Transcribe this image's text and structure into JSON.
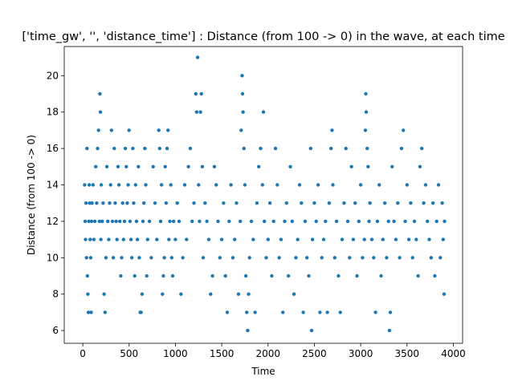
{
  "chart_data": {
    "type": "scatter",
    "title": "['time_gw', '', 'distance_time'] : Distance (from 100 -> 0) in the wave, at each time",
    "xlabel": "Time",
    "ylabel": "Distance (from 100 -> 0)",
    "xlim": [
      -200,
      4100
    ],
    "ylim": [
      5.3,
      21.6
    ],
    "xticks": [
      0,
      500,
      1000,
      1500,
      2000,
      2500,
      3000,
      3500,
      4000
    ],
    "yticks": [
      6,
      8,
      10,
      12,
      14,
      16,
      18,
      20
    ],
    "grid": false,
    "legend": "none",
    "marker_color": "#1f77b4",
    "series": [
      {
        "points": [
          [
            20,
            14
          ],
          [
            25,
            12
          ],
          [
            30,
            11
          ],
          [
            35,
            13
          ],
          [
            40,
            10
          ],
          [
            45,
            16
          ],
          [
            50,
            9
          ],
          [
            55,
            8
          ],
          [
            60,
            7
          ],
          [
            65,
            12
          ],
          [
            70,
            14
          ],
          [
            75,
            13
          ],
          [
            80,
            11
          ],
          [
            85,
            10
          ],
          [
            90,
            7
          ],
          [
            95,
            12
          ],
          [
            100,
            13
          ],
          [
            110,
            14
          ],
          [
            120,
            11
          ],
          [
            130,
            12
          ],
          [
            140,
            15
          ],
          [
            150,
            13
          ],
          [
            160,
            16
          ],
          [
            170,
            17
          ],
          [
            180,
            12
          ],
          [
            185,
            19
          ],
          [
            190,
            18
          ],
          [
            195,
            11
          ],
          [
            200,
            14
          ],
          [
            210,
            12
          ],
          [
            220,
            13
          ],
          [
            230,
            8
          ],
          [
            240,
            7
          ],
          [
            250,
            10
          ],
          [
            260,
            15
          ],
          [
            270,
            12
          ],
          [
            280,
            11
          ],
          [
            290,
            13
          ],
          [
            300,
            14
          ],
          [
            310,
            17
          ],
          [
            320,
            12
          ],
          [
            330,
            10
          ],
          [
            340,
            16
          ],
          [
            350,
            13
          ],
          [
            360,
            12
          ],
          [
            370,
            11
          ],
          [
            380,
            15
          ],
          [
            390,
            14
          ],
          [
            400,
            12
          ],
          [
            410,
            9
          ],
          [
            420,
            10
          ],
          [
            430,
            13
          ],
          [
            440,
            11
          ],
          [
            450,
            12
          ],
          [
            460,
            16
          ],
          [
            470,
            15
          ],
          [
            480,
            13
          ],
          [
            490,
            14
          ],
          [
            500,
            17
          ],
          [
            510,
            12
          ],
          [
            520,
            11
          ],
          [
            530,
            10
          ],
          [
            540,
            16
          ],
          [
            550,
            13
          ],
          [
            560,
            9
          ],
          [
            570,
            14
          ],
          [
            580,
            12
          ],
          [
            590,
            11
          ],
          [
            600,
            15
          ],
          [
            610,
            10
          ],
          [
            620,
            7
          ],
          [
            630,
            7
          ],
          [
            640,
            8
          ],
          [
            650,
            12
          ],
          [
            660,
            13
          ],
          [
            670,
            16
          ],
          [
            680,
            14
          ],
          [
            690,
            9
          ],
          [
            700,
            11
          ],
          [
            720,
            12
          ],
          [
            740,
            10
          ],
          [
            760,
            15
          ],
          [
            780,
            13
          ],
          [
            800,
            11
          ],
          [
            820,
            17
          ],
          [
            830,
            16
          ],
          [
            840,
            12
          ],
          [
            850,
            14
          ],
          [
            860,
            8
          ],
          [
            870,
            9
          ],
          [
            880,
            10
          ],
          [
            890,
            15
          ],
          [
            900,
            13
          ],
          [
            910,
            16
          ],
          [
            920,
            17
          ],
          [
            930,
            11
          ],
          [
            940,
            12
          ],
          [
            950,
            14
          ],
          [
            960,
            10
          ],
          [
            970,
            9
          ],
          [
            980,
            12
          ],
          [
            1000,
            11
          ],
          [
            1020,
            13
          ],
          [
            1040,
            12
          ],
          [
            1060,
            8
          ],
          [
            1080,
            10
          ],
          [
            1100,
            14
          ],
          [
            1120,
            11
          ],
          [
            1140,
            15
          ],
          [
            1160,
            16
          ],
          [
            1180,
            12
          ],
          [
            1200,
            13
          ],
          [
            1220,
            19
          ],
          [
            1230,
            18
          ],
          [
            1240,
            21
          ],
          [
            1250,
            14
          ],
          [
            1260,
            12
          ],
          [
            1270,
            18
          ],
          [
            1280,
            19
          ],
          [
            1290,
            15
          ],
          [
            1300,
            10
          ],
          [
            1320,
            13
          ],
          [
            1340,
            12
          ],
          [
            1360,
            11
          ],
          [
            1380,
            8
          ],
          [
            1400,
            9
          ],
          [
            1420,
            15
          ],
          [
            1440,
            14
          ],
          [
            1460,
            12
          ],
          [
            1480,
            10
          ],
          [
            1500,
            11
          ],
          [
            1520,
            13
          ],
          [
            1540,
            9
          ],
          [
            1560,
            7
          ],
          [
            1580,
            12
          ],
          [
            1600,
            14
          ],
          [
            1620,
            10
          ],
          [
            1640,
            11
          ],
          [
            1660,
            13
          ],
          [
            1680,
            8
          ],
          [
            1700,
            12
          ],
          [
            1710,
            17
          ],
          [
            1720,
            20
          ],
          [
            1725,
            19
          ],
          [
            1730,
            18
          ],
          [
            1740,
            16
          ],
          [
            1750,
            14
          ],
          [
            1760,
            9
          ],
          [
            1770,
            7
          ],
          [
            1780,
            6
          ],
          [
            1790,
            8
          ],
          [
            1800,
            10
          ],
          [
            1820,
            12
          ],
          [
            1840,
            11
          ],
          [
            1860,
            7
          ],
          [
            1880,
            13
          ],
          [
            1900,
            15
          ],
          [
            1920,
            16
          ],
          [
            1940,
            14
          ],
          [
            1950,
            18
          ],
          [
            1960,
            12
          ],
          [
            1980,
            10
          ],
          [
            2000,
            11
          ],
          [
            2020,
            13
          ],
          [
            2040,
            9
          ],
          [
            2060,
            12
          ],
          [
            2080,
            16
          ],
          [
            2100,
            14
          ],
          [
            2120,
            10
          ],
          [
            2140,
            11
          ],
          [
            2160,
            7
          ],
          [
            2180,
            12
          ],
          [
            2200,
            13
          ],
          [
            2220,
            9
          ],
          [
            2240,
            15
          ],
          [
            2260,
            12
          ],
          [
            2280,
            8
          ],
          [
            2300,
            10
          ],
          [
            2320,
            11
          ],
          [
            2340,
            14
          ],
          [
            2360,
            13
          ],
          [
            2380,
            7
          ],
          [
            2400,
            12
          ],
          [
            2420,
            10
          ],
          [
            2440,
            9
          ],
          [
            2460,
            16
          ],
          [
            2470,
            6
          ],
          [
            2480,
            11
          ],
          [
            2500,
            13
          ],
          [
            2520,
            12
          ],
          [
            2540,
            14
          ],
          [
            2560,
            7
          ],
          [
            2580,
            10
          ],
          [
            2600,
            11
          ],
          [
            2620,
            12
          ],
          [
            2640,
            7
          ],
          [
            2660,
            13
          ],
          [
            2680,
            16
          ],
          [
            2690,
            17
          ],
          [
            2700,
            14
          ],
          [
            2720,
            10
          ],
          [
            2740,
            12
          ],
          [
            2760,
            9
          ],
          [
            2780,
            7
          ],
          [
            2800,
            11
          ],
          [
            2820,
            13
          ],
          [
            2840,
            16
          ],
          [
            2860,
            12
          ],
          [
            2880,
            10
          ],
          [
            2900,
            15
          ],
          [
            2920,
            11
          ],
          [
            2940,
            13
          ],
          [
            2960,
            9
          ],
          [
            2980,
            12
          ],
          [
            3000,
            14
          ],
          [
            3020,
            10
          ],
          [
            3040,
            11
          ],
          [
            3050,
            17
          ],
          [
            3055,
            19
          ],
          [
            3060,
            18
          ],
          [
            3070,
            16
          ],
          [
            3080,
            15
          ],
          [
            3090,
            12
          ],
          [
            3100,
            13
          ],
          [
            3120,
            11
          ],
          [
            3140,
            10
          ],
          [
            3160,
            7
          ],
          [
            3180,
            12
          ],
          [
            3200,
            14
          ],
          [
            3220,
            9
          ],
          [
            3240,
            11
          ],
          [
            3260,
            13
          ],
          [
            3280,
            10
          ],
          [
            3300,
            12
          ],
          [
            3310,
            6
          ],
          [
            3320,
            7
          ],
          [
            3340,
            15
          ],
          [
            3360,
            12
          ],
          [
            3380,
            11
          ],
          [
            3400,
            13
          ],
          [
            3420,
            10
          ],
          [
            3440,
            16
          ],
          [
            3460,
            17
          ],
          [
            3480,
            12
          ],
          [
            3500,
            14
          ],
          [
            3520,
            11
          ],
          [
            3540,
            13
          ],
          [
            3560,
            10
          ],
          [
            3580,
            12
          ],
          [
            3600,
            11
          ],
          [
            3620,
            9
          ],
          [
            3640,
            15
          ],
          [
            3660,
            16
          ],
          [
            3680,
            13
          ],
          [
            3700,
            14
          ],
          [
            3720,
            12
          ],
          [
            3740,
            11
          ],
          [
            3760,
            10
          ],
          [
            3780,
            13
          ],
          [
            3800,
            9
          ],
          [
            3820,
            12
          ],
          [
            3840,
            14
          ],
          [
            3860,
            10
          ],
          [
            3880,
            13
          ],
          [
            3890,
            11
          ],
          [
            3900,
            8
          ],
          [
            3905,
            12
          ]
        ]
      }
    ]
  }
}
